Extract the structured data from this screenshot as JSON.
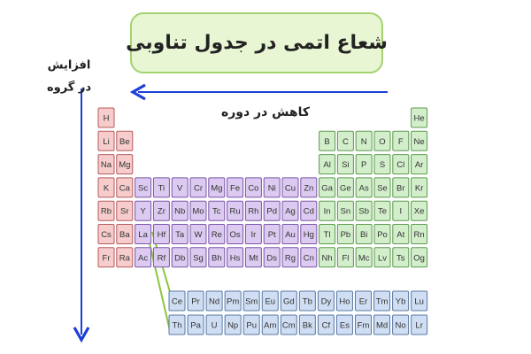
{
  "title": "شعاع اتمی در جدول تناوبی",
  "period_label": "کاهش در دوره",
  "group_label": [
    "افزایش",
    "در گروه"
  ],
  "table": {
    "rows": [
      [
        "H",
        null,
        null,
        null,
        null,
        null,
        null,
        null,
        null,
        null,
        null,
        null,
        null,
        null,
        null,
        null,
        null,
        "He"
      ],
      [
        "Li",
        "Be",
        null,
        null,
        null,
        null,
        null,
        null,
        null,
        null,
        null,
        null,
        "B",
        "C",
        "N",
        "O",
        "F",
        "Ne"
      ],
      [
        "Na",
        "Mg",
        null,
        null,
        null,
        null,
        null,
        null,
        null,
        null,
        null,
        null,
        "Al",
        "Si",
        "P",
        "S",
        "Cl",
        "Ar"
      ],
      [
        "K",
        "Ca",
        "Sc",
        "Ti",
        "V",
        "Cr",
        "Mg",
        "Fe",
        "Co",
        "Ni",
        "Cu",
        "Zn",
        "Ga",
        "Ge",
        "As",
        "Se",
        "Br",
        "Kr"
      ],
      [
        "Rb",
        "Sr",
        "Y",
        "Zr",
        "Nb",
        "Mo",
        "Tc",
        "Ru",
        "Rh",
        "Pd",
        "Ag",
        "Cd",
        "In",
        "Sn",
        "Sb",
        "Te",
        "I",
        "Xe"
      ],
      [
        "Cs",
        "Ba",
        "La",
        "Hf",
        "Ta",
        "W",
        "Re",
        "Os",
        "Ir",
        "Pt",
        "Au",
        "Hg",
        "Tl",
        "Pb",
        "Bi",
        "Po",
        "At",
        "Rn"
      ],
      [
        "Fr",
        "Ra",
        "Ac",
        "Rf",
        "Db",
        "Sg",
        "Bh",
        "Hs",
        "Mt",
        "Ds",
        "Rg",
        "Cn",
        "Nh",
        "Fl",
        "Mc",
        "Lv",
        "Ts",
        "Og"
      ]
    ]
  },
  "lanthanides": [
    "Ce",
    "Pr",
    "Nd",
    "Pm",
    "Sm",
    "Eu",
    "Gd",
    "Tb",
    "Dy",
    "Ho",
    "Er",
    "Tm",
    "Yb",
    "Lu"
  ],
  "actinides": [
    "Th",
    "Pa",
    "U",
    "Np",
    "Pu",
    "Am",
    "Cm",
    "Bk",
    "Cf",
    "Es",
    "Fm",
    "Md",
    "No",
    "Lr"
  ]
}
